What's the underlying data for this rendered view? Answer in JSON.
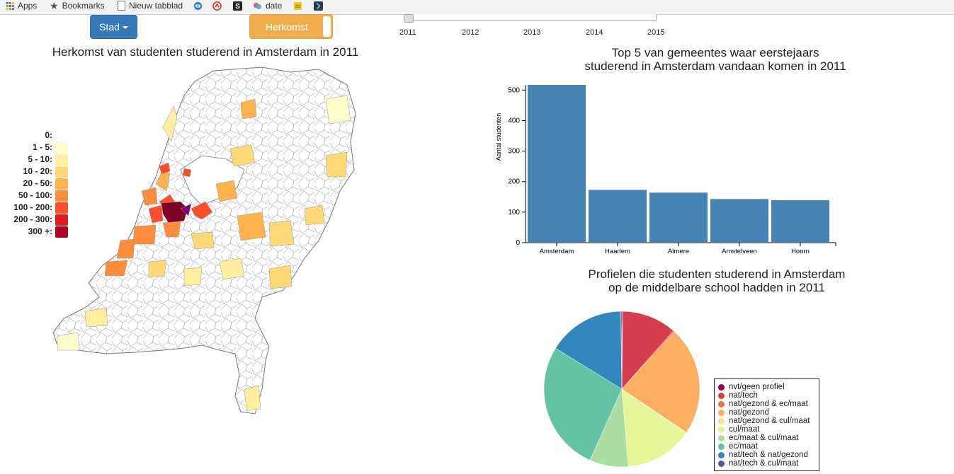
{
  "bookmarks": [
    {
      "label": "Apps",
      "icon": "apps-grid-icon"
    },
    {
      "label": "Bookmarks",
      "icon": "star-icon"
    },
    {
      "label": "Nieuw tabblad",
      "icon": "document-icon"
    },
    {
      "label": "",
      "icon": "eye-icon"
    },
    {
      "label": "",
      "icon": "dropbox-icon"
    },
    {
      "label": "",
      "icon": "s-logo-icon"
    },
    {
      "label": "date",
      "icon": "date-app-icon"
    },
    {
      "label": "",
      "icon": "note-icon"
    },
    {
      "label": "",
      "icon": "code-icon"
    }
  ],
  "controls": {
    "stad_label": "Stad",
    "herkomst_label": "Herkomst"
  },
  "slider": {
    "years": [
      "2011",
      "2012",
      "2013",
      "2014",
      "2015"
    ],
    "selected": "2011"
  },
  "map": {
    "title": "Herkomst van studenten studerend in Amsterdam in 2011",
    "legend": [
      {
        "label": "0:",
        "color": "#ffffff"
      },
      {
        "label": "1 - 5:",
        "color": "#ffffcc"
      },
      {
        "label": "5 - 10:",
        "color": "#ffeda0"
      },
      {
        "label": "10 - 20:",
        "color": "#fed976"
      },
      {
        "label": "20 - 50:",
        "color": "#feb24c"
      },
      {
        "label": "50 - 100:",
        "color": "#fd8d3c"
      },
      {
        "label": "100 - 200:",
        "color": "#fc4e2a"
      },
      {
        "label": "200 - 300:",
        "color": "#e31a1c"
      },
      {
        "label": "300 +:",
        "color": "#b10026"
      }
    ]
  },
  "bar": {
    "title_line1": "Top 5 van gemeentes waar eerstejaars",
    "title_line2": "studerend in Amsterdam vandaan komen in 2011"
  },
  "pie": {
    "title_line1": "Profielen die studenten studerend in Amsterdam",
    "title_line2": "op de middelbare school hadden in 2011"
  },
  "chart_data": [
    {
      "type": "bar",
      "categories": [
        "Amsterdam",
        "Haarlem",
        "Almere",
        "Amstelveen",
        "Hoorn"
      ],
      "values": [
        517,
        173,
        164,
        143,
        139
      ],
      "title": "Top 5 van gemeentes waar eerstejaars studerend in Amsterdam vandaan komen in 2011",
      "xlabel": "",
      "ylabel": "Aantal studenten",
      "ylim": [
        0,
        517
      ],
      "yticks": [
        0,
        100,
        200,
        300,
        400,
        500
      ],
      "color": "#4682b4",
      "grid": false
    },
    {
      "type": "pie",
      "title": "Profielen die studenten studerend in Amsterdam op de middelbare school hadden in 2011",
      "legend_position": "bottom-right",
      "slices": [
        {
          "label": "nvt/geen profiel",
          "value": 0.2,
          "color": "#9e0142"
        },
        {
          "label": "nat/tech",
          "value": 11.3,
          "color": "#d53e4f"
        },
        {
          "label": "nat/gezond & ec/maat",
          "value": 0.3,
          "color": "#f46d43"
        },
        {
          "label": "nat/gezond",
          "value": 22.6,
          "color": "#fdae61"
        },
        {
          "label": "nat/gezond & cul/maat",
          "value": 0.2,
          "color": "#fee08b"
        },
        {
          "label": "cul/maat",
          "value": 14.1,
          "color": "#e6f598"
        },
        {
          "label": "ec/maat & cul/maat",
          "value": 8.0,
          "color": "#abdda4"
        },
        {
          "label": "ec/maat",
          "value": 27.1,
          "color": "#66c2a5"
        },
        {
          "label": "nat/tech & nat/gezond",
          "value": 16.0,
          "color": "#3288bd"
        },
        {
          "label": "nat/tech & cul/maat",
          "value": 0.2,
          "color": "#5e4fa2"
        }
      ]
    }
  ]
}
